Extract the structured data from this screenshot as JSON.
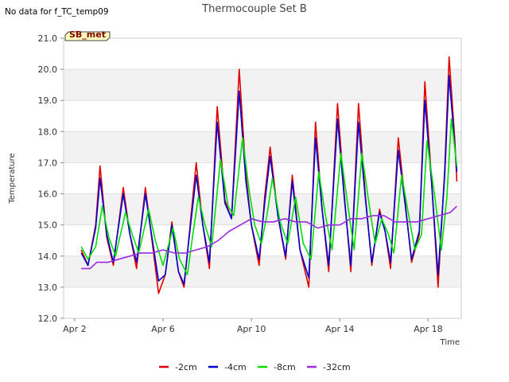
{
  "notice": "No data for f_TC_temp09",
  "site_badge": "SB_met",
  "chart_data": {
    "type": "line",
    "title": "Thermocouple Set B",
    "xlabel": "Time",
    "ylabel": "Temperature",
    "xlim": [
      1.5,
      19.5
    ],
    "ylim": [
      12.0,
      21.0
    ],
    "x_unit": "days (April 2024)",
    "x_ticks": [
      {
        "x": 2,
        "label": "Apr 2"
      },
      {
        "x": 6,
        "label": "Apr 6"
      },
      {
        "x": 10,
        "label": "Apr 10"
      },
      {
        "x": 14,
        "label": "Apr 14"
      },
      {
        "x": 18,
        "label": "Apr 18"
      }
    ],
    "y_ticks": [
      {
        "y": 12,
        "label": "12.0"
      },
      {
        "y": 13,
        "label": "13.0"
      },
      {
        "y": 14,
        "label": "14.0"
      },
      {
        "y": 15,
        "label": "15.0"
      },
      {
        "y": 16,
        "label": "16.0"
      },
      {
        "y": 17,
        "label": "17.0"
      },
      {
        "y": 18,
        "label": "18.0"
      },
      {
        "y": 19,
        "label": "19.0"
      },
      {
        "y": 20,
        "label": "20.0"
      },
      {
        "y": 21,
        "label": "21.0"
      }
    ],
    "grid": "horizontal bands",
    "legend": "bottom",
    "series": [
      {
        "name": "-2cm",
        "color": "#e00000",
        "points": [
          [
            2.3,
            14.2
          ],
          [
            2.6,
            13.7
          ],
          [
            2.95,
            15.0
          ],
          [
            3.15,
            16.9
          ],
          [
            3.45,
            14.6
          ],
          [
            3.75,
            13.7
          ],
          [
            4.2,
            16.2
          ],
          [
            4.5,
            14.7
          ],
          [
            4.8,
            13.6
          ],
          [
            5.2,
            16.2
          ],
          [
            5.5,
            14.5
          ],
          [
            5.8,
            12.8
          ],
          [
            6.1,
            13.4
          ],
          [
            6.4,
            15.1
          ],
          [
            6.7,
            13.5
          ],
          [
            6.95,
            13.0
          ],
          [
            7.2,
            14.8
          ],
          [
            7.5,
            17.0
          ],
          [
            7.8,
            15.0
          ],
          [
            8.1,
            13.6
          ],
          [
            8.45,
            18.8
          ],
          [
            8.8,
            15.8
          ],
          [
            9.1,
            15.2
          ],
          [
            9.45,
            20.0
          ],
          [
            9.75,
            16.6
          ],
          [
            10.0,
            15.0
          ],
          [
            10.35,
            13.7
          ],
          [
            10.6,
            15.9
          ],
          [
            10.85,
            17.5
          ],
          [
            11.2,
            15.3
          ],
          [
            11.55,
            13.9
          ],
          [
            11.85,
            16.6
          ],
          [
            12.2,
            14.2
          ],
          [
            12.6,
            13.0
          ],
          [
            12.9,
            18.3
          ],
          [
            13.2,
            15.5
          ],
          [
            13.5,
            13.5
          ],
          [
            13.9,
            18.9
          ],
          [
            14.2,
            16.0
          ],
          [
            14.5,
            13.5
          ],
          [
            14.85,
            18.9
          ],
          [
            15.15,
            16.0
          ],
          [
            15.45,
            13.7
          ],
          [
            15.8,
            15.5
          ],
          [
            16.05,
            14.8
          ],
          [
            16.3,
            13.6
          ],
          [
            16.65,
            17.8
          ],
          [
            16.95,
            15.8
          ],
          [
            17.25,
            13.8
          ],
          [
            17.6,
            14.7
          ],
          [
            17.85,
            19.6
          ],
          [
            18.15,
            16.5
          ],
          [
            18.45,
            13.0
          ],
          [
            18.75,
            16.8
          ],
          [
            18.95,
            20.4
          ],
          [
            19.2,
            17.8
          ],
          [
            19.3,
            16.4
          ]
        ]
      },
      {
        "name": "-4cm",
        "color": "#0000d0",
        "points": [
          [
            2.3,
            14.1
          ],
          [
            2.6,
            13.7
          ],
          [
            2.95,
            14.9
          ],
          [
            3.15,
            16.5
          ],
          [
            3.45,
            14.7
          ],
          [
            3.75,
            13.8
          ],
          [
            4.2,
            16.0
          ],
          [
            4.5,
            14.7
          ],
          [
            4.8,
            13.8
          ],
          [
            5.2,
            16.0
          ],
          [
            5.5,
            14.6
          ],
          [
            5.8,
            13.2
          ],
          [
            6.1,
            13.4
          ],
          [
            6.4,
            15.0
          ],
          [
            6.7,
            13.5
          ],
          [
            6.95,
            13.1
          ],
          [
            7.2,
            14.7
          ],
          [
            7.5,
            16.6
          ],
          [
            7.8,
            15.0
          ],
          [
            8.1,
            13.8
          ],
          [
            8.45,
            18.3
          ],
          [
            8.8,
            15.7
          ],
          [
            9.1,
            15.2
          ],
          [
            9.45,
            19.3
          ],
          [
            9.75,
            16.4
          ],
          [
            10.0,
            15.0
          ],
          [
            10.35,
            13.9
          ],
          [
            10.6,
            15.7
          ],
          [
            10.85,
            17.2
          ],
          [
            11.2,
            15.3
          ],
          [
            11.55,
            14.0
          ],
          [
            11.85,
            16.4
          ],
          [
            12.2,
            14.2
          ],
          [
            12.6,
            13.3
          ],
          [
            12.9,
            17.8
          ],
          [
            13.2,
            15.5
          ],
          [
            13.5,
            13.7
          ],
          [
            13.9,
            18.4
          ],
          [
            14.2,
            15.9
          ],
          [
            14.5,
            13.7
          ],
          [
            14.85,
            18.3
          ],
          [
            15.15,
            15.9
          ],
          [
            15.45,
            13.8
          ],
          [
            15.8,
            15.4
          ],
          [
            16.05,
            14.8
          ],
          [
            16.3,
            13.8
          ],
          [
            16.65,
            17.4
          ],
          [
            16.95,
            15.7
          ],
          [
            17.25,
            13.9
          ],
          [
            17.6,
            14.8
          ],
          [
            17.85,
            19.0
          ],
          [
            18.15,
            16.4
          ],
          [
            18.45,
            13.4
          ],
          [
            18.75,
            16.6
          ],
          [
            18.95,
            19.8
          ],
          [
            19.2,
            17.6
          ],
          [
            19.3,
            16.7
          ]
        ]
      },
      {
        "name": "-8cm",
        "color": "#00e000",
        "points": [
          [
            2.3,
            14.3
          ],
          [
            2.6,
            13.9
          ],
          [
            2.95,
            14.3
          ],
          [
            3.25,
            15.6
          ],
          [
            3.55,
            14.6
          ],
          [
            3.85,
            14.0
          ],
          [
            4.3,
            15.4
          ],
          [
            4.6,
            14.7
          ],
          [
            4.9,
            14.1
          ],
          [
            5.35,
            15.5
          ],
          [
            5.65,
            14.5
          ],
          [
            6.0,
            13.7
          ],
          [
            6.45,
            14.9
          ],
          [
            6.75,
            13.9
          ],
          [
            7.1,
            13.4
          ],
          [
            7.35,
            14.7
          ],
          [
            7.6,
            15.9
          ],
          [
            7.9,
            15.0
          ],
          [
            8.2,
            14.3
          ],
          [
            8.6,
            17.1
          ],
          [
            8.95,
            15.6
          ],
          [
            9.2,
            15.3
          ],
          [
            9.6,
            17.8
          ],
          [
            9.9,
            16.1
          ],
          [
            10.15,
            15.0
          ],
          [
            10.45,
            14.4
          ],
          [
            10.7,
            15.3
          ],
          [
            10.95,
            16.5
          ],
          [
            11.3,
            15.1
          ],
          [
            11.65,
            14.4
          ],
          [
            12.0,
            15.9
          ],
          [
            12.35,
            14.4
          ],
          [
            12.7,
            13.9
          ],
          [
            13.05,
            16.7
          ],
          [
            13.35,
            15.3
          ],
          [
            13.65,
            14.2
          ],
          [
            14.05,
            17.3
          ],
          [
            14.35,
            15.7
          ],
          [
            14.65,
            14.2
          ],
          [
            15.0,
            17.3
          ],
          [
            15.3,
            15.8
          ],
          [
            15.6,
            14.4
          ],
          [
            15.9,
            15.2
          ],
          [
            16.2,
            14.7
          ],
          [
            16.45,
            14.1
          ],
          [
            16.8,
            16.6
          ],
          [
            17.1,
            15.4
          ],
          [
            17.4,
            14.2
          ],
          [
            17.7,
            14.7
          ],
          [
            17.95,
            17.7
          ],
          [
            18.3,
            15.9
          ],
          [
            18.6,
            14.2
          ],
          [
            18.85,
            15.9
          ],
          [
            19.05,
            18.4
          ],
          [
            19.3,
            16.9
          ]
        ]
      },
      {
        "name": "-32cm",
        "color": "#9a2be0",
        "points": [
          [
            2.3,
            13.6
          ],
          [
            2.7,
            13.6
          ],
          [
            3.0,
            13.8
          ],
          [
            3.5,
            13.8
          ],
          [
            4.0,
            13.9
          ],
          [
            4.5,
            14.0
          ],
          [
            5.0,
            14.1
          ],
          [
            5.5,
            14.1
          ],
          [
            6.0,
            14.2
          ],
          [
            6.5,
            14.1
          ],
          [
            7.0,
            14.1
          ],
          [
            7.5,
            14.2
          ],
          [
            8.0,
            14.3
          ],
          [
            8.5,
            14.5
          ],
          [
            9.0,
            14.8
          ],
          [
            9.5,
            15.0
          ],
          [
            10.0,
            15.2
          ],
          [
            10.5,
            15.1
          ],
          [
            11.0,
            15.1
          ],
          [
            11.5,
            15.2
          ],
          [
            12.0,
            15.1
          ],
          [
            12.5,
            15.1
          ],
          [
            13.0,
            14.9
          ],
          [
            13.5,
            15.0
          ],
          [
            14.0,
            15.0
          ],
          [
            14.5,
            15.2
          ],
          [
            15.0,
            15.2
          ],
          [
            15.5,
            15.3
          ],
          [
            16.0,
            15.3
          ],
          [
            16.5,
            15.1
          ],
          [
            17.0,
            15.1
          ],
          [
            17.5,
            15.1
          ],
          [
            18.0,
            15.2
          ],
          [
            18.5,
            15.3
          ],
          [
            19.0,
            15.4
          ],
          [
            19.3,
            15.6
          ]
        ]
      }
    ]
  }
}
